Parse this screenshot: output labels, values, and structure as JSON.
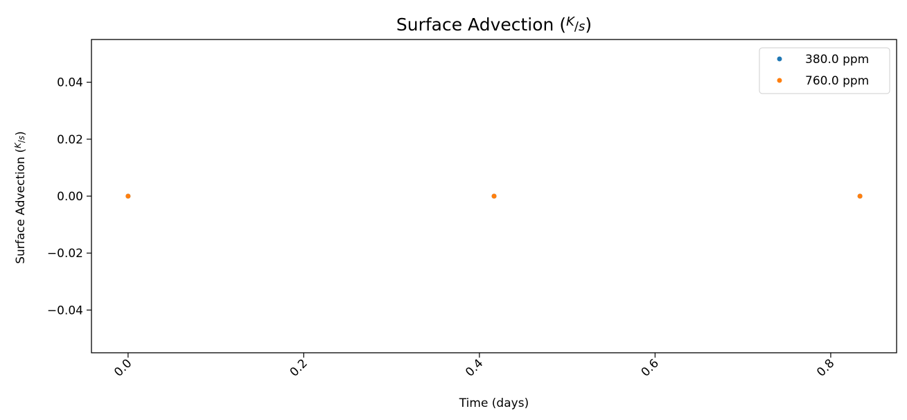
{
  "chart_data": {
    "type": "scatter",
    "title": "Surface Advection (K/s)",
    "xlabel": "Time (days)",
    "ylabel": "Surface Advection (K/s)",
    "xlim": [
      -0.0417,
      0.875
    ],
    "ylim": [
      -0.055,
      0.055
    ],
    "xticks": [
      0.0,
      0.2,
      0.4,
      0.6,
      0.8
    ],
    "xtick_labels": [
      "0.0",
      "0.2",
      "0.4",
      "0.6",
      "0.8"
    ],
    "yticks": [
      0.04,
      0.02,
      0.0,
      -0.02,
      -0.04
    ],
    "ytick_labels": [
      "0.04",
      "0.02",
      "0.00",
      "−0.02",
      "−0.04"
    ],
    "legend_position": "top-right",
    "grid": false,
    "series": [
      {
        "name": "380.0 ppm",
        "color": "#1f77b4",
        "x": [
          0.0,
          0.4167,
          0.8333
        ],
        "y": [
          0.0,
          0.0,
          0.0
        ]
      },
      {
        "name": "760.0 ppm",
        "color": "#ff7f0e",
        "x": [
          0.0,
          0.4167,
          0.8333
        ],
        "y": [
          0.0,
          0.0,
          0.0
        ]
      }
    ]
  }
}
